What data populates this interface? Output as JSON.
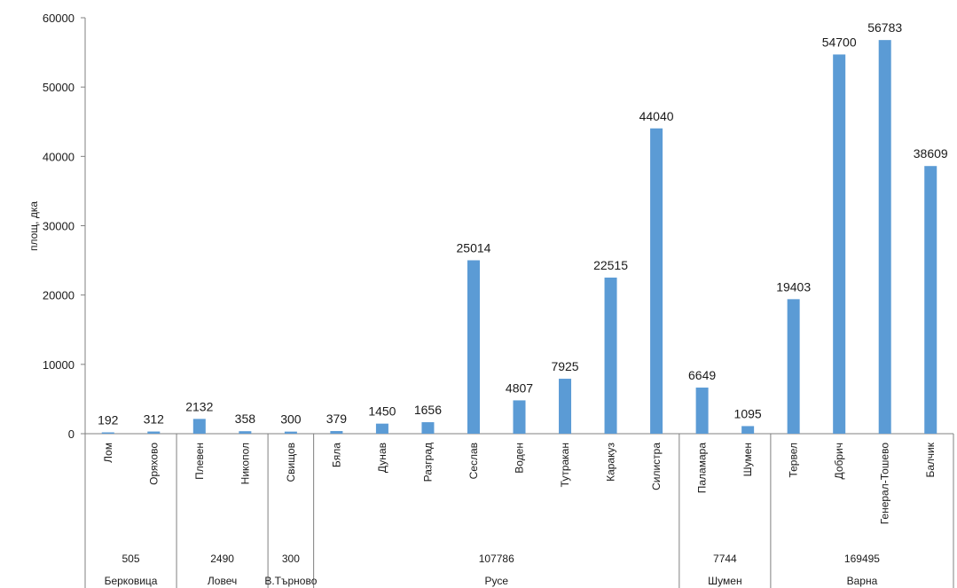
{
  "chart_data": {
    "type": "bar",
    "ylabel": "площ, дка",
    "ylim": [
      0,
      60000
    ],
    "y_ticks": [
      0,
      10000,
      20000,
      30000,
      40000,
      50000,
      60000
    ],
    "grid": false,
    "bar_color": "#5b9bd5",
    "categories": [
      "Лом",
      "Оряхово",
      "Плевен",
      "Никопол",
      "Свищов",
      "Бяла",
      "Дунав",
      "Разград",
      "Сеслав",
      "Воден",
      "Тутракан",
      "Каракуз",
      "Силистра",
      "Паламара",
      "Шумен",
      "Тервел",
      "Добрич",
      "Генерал-Тошево",
      "Балчик"
    ],
    "values": [
      192,
      312,
      2132,
      358,
      300,
      379,
      1450,
      1656,
      25014,
      4807,
      7925,
      22515,
      44040,
      6649,
      1095,
      19403,
      54700,
      56783,
      38609
    ],
    "value_labels": [
      "192",
      "312",
      "2132",
      "358",
      "300",
      "379",
      "1450",
      "1656",
      "25014",
      "4807",
      "7925",
      "22515",
      "44040",
      "6649",
      "1095",
      "19403",
      "54700",
      "56783",
      "38609"
    ],
    "groups": [
      {
        "name": "Берковица",
        "total": "505",
        "count": 2
      },
      {
        "name": "Ловеч",
        "total": "2490",
        "count": 2
      },
      {
        "name": "В.Търново",
        "total": "300",
        "count": 1
      },
      {
        "name": "Русе",
        "total": "107786",
        "count": 8
      },
      {
        "name": "Шумен",
        "total": "7744",
        "count": 2
      },
      {
        "name": "Варна",
        "total": "169495",
        "count": 4
      }
    ]
  }
}
